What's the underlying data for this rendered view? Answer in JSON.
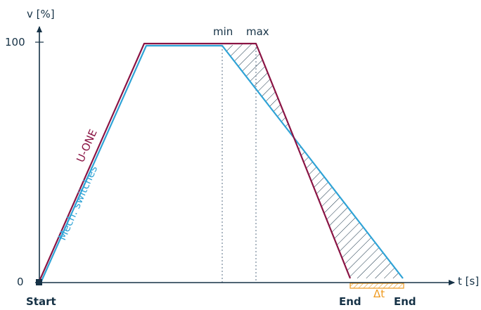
{
  "axes": {
    "y_label": "v [%]",
    "x_label": "t [s]",
    "y_tick_100": "100",
    "y_tick_0": "0"
  },
  "markers": {
    "min": "min",
    "max": "max",
    "start": "Start",
    "end_uone": "End",
    "end_mech": "End",
    "delta_t": "Δt"
  },
  "series": {
    "uone": "U-ONE",
    "mech": "Mech. switches"
  },
  "colors": {
    "uone": "#8a1444",
    "mech": "#2fa3d6",
    "delta_t": "#ef9a1f",
    "axis": "#163246"
  }
}
